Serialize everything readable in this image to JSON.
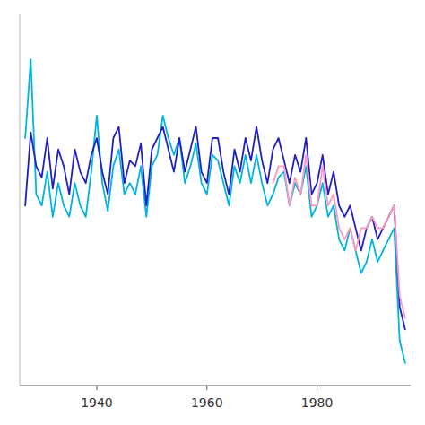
{
  "chart_data": {
    "type": "line",
    "xlim": [
      1926,
      1997
    ],
    "ylim": [
      -28,
      38
    ],
    "xticks": [
      1940,
      1960,
      1980
    ],
    "tick_labels": "x",
    "grid": false,
    "series": [
      {
        "color": "#00b4e0",
        "x": [
          1927,
          1928,
          1929,
          1930,
          1931,
          1932,
          1933,
          1934,
          1935,
          1936,
          1937,
          1938,
          1939,
          1940,
          1941,
          1942,
          1943,
          1944,
          1945,
          1946,
          1947,
          1948,
          1949,
          1950,
          1951,
          1952,
          1953,
          1954,
          1955,
          1956,
          1957,
          1958,
          1959,
          1960,
          1961,
          1962,
          1963,
          1964,
          1965,
          1966,
          1967,
          1968,
          1969,
          1970,
          1971,
          1972,
          1973,
          1974,
          1975,
          1976,
          1977,
          1978,
          1979,
          1980,
          1981,
          1982,
          1983,
          1984,
          1985,
          1986,
          1987,
          1988,
          1989,
          1990,
          1991,
          1992,
          1993,
          1994,
          1995,
          1996
        ],
        "values": [
          16,
          30,
          6,
          4,
          10,
          2,
          8,
          4,
          2,
          8,
          4,
          2,
          10,
          20,
          8,
          3,
          11,
          14,
          6,
          8,
          6,
          11,
          2,
          11,
          13,
          20,
          16,
          13,
          16,
          8,
          11,
          15,
          8,
          6,
          13,
          12,
          8,
          4,
          11,
          8,
          13,
          8,
          13,
          8,
          4,
          6,
          9,
          10,
          4,
          8,
          6,
          11,
          2,
          4,
          8,
          2,
          4,
          -2,
          -4,
          0,
          -4,
          -8,
          -6,
          -2,
          -6,
          -4,
          -2,
          0,
          -20,
          -24
        ]
      },
      {
        "color": "#2020c0",
        "x": [
          1927,
          1928,
          1929,
          1930,
          1931,
          1932,
          1933,
          1934,
          1935,
          1936,
          1937,
          1938,
          1939,
          1940,
          1941,
          1942,
          1943,
          1944,
          1945,
          1946,
          1947,
          1948,
          1949,
          1950,
          1951,
          1952,
          1953,
          1954,
          1955,
          1956,
          1957,
          1958,
          1959,
          1960,
          1961,
          1962,
          1963,
          1964,
          1965,
          1966,
          1967,
          1968,
          1969,
          1970,
          1971,
          1972,
          1973,
          1974,
          1975,
          1976,
          1977,
          1978,
          1979,
          1980,
          1981,
          1982,
          1983,
          1984,
          1985,
          1986,
          1987,
          1988,
          1989,
          1990,
          1991,
          1992,
          1993,
          1994,
          1995,
          1996
        ],
        "values": [
          4,
          17,
          11,
          9,
          16,
          7,
          14,
          11,
          6,
          14,
          10,
          8,
          13,
          16,
          10,
          6,
          16,
          18,
          8,
          12,
          11,
          15,
          4,
          14,
          16,
          18,
          14,
          10,
          16,
          10,
          14,
          18,
          10,
          8,
          16,
          16,
          10,
          6,
          14,
          10,
          16,
          12,
          18,
          12,
          8,
          14,
          16,
          12,
          8,
          13,
          10,
          16,
          6,
          8,
          13,
          6,
          10,
          4,
          2,
          4,
          0,
          -4,
          0,
          2,
          -2,
          0,
          2,
          4,
          -14,
          -18
        ]
      },
      {
        "color": "#ff99bb",
        "x": [
          1972,
          1973,
          1974,
          1975,
          1976,
          1977,
          1978,
          1979,
          1980,
          1981,
          1982,
          1983,
          1984,
          1985,
          1986,
          1987,
          1988,
          1989,
          1990,
          1991,
          1992,
          1993,
          1994,
          1995,
          1996
        ],
        "values": [
          8,
          11,
          11,
          4,
          9,
          6,
          13,
          4,
          4,
          11,
          4,
          6,
          0,
          -2,
          0,
          -4,
          0,
          0,
          2,
          0,
          0,
          2,
          4,
          -12,
          -16
        ]
      }
    ]
  }
}
